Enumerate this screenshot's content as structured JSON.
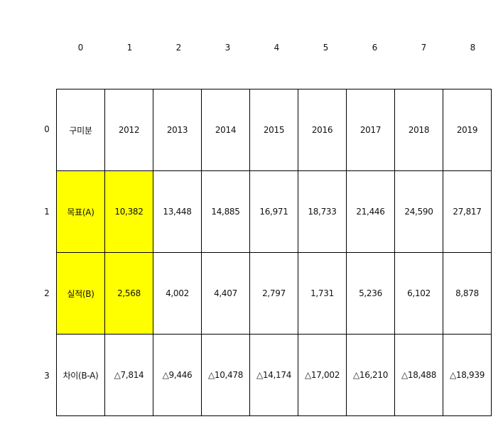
{
  "highlight_color": "#ffff00",
  "column_indices": [
    "0",
    "1",
    "2",
    "3",
    "4",
    "5",
    "6",
    "7",
    "8"
  ],
  "row_indices": [
    "0",
    "1",
    "2",
    "3"
  ],
  "rows": [
    [
      "구미분",
      "2012",
      "2013",
      "2014",
      "2015",
      "2016",
      "2017",
      "2018",
      "2019"
    ],
    [
      "목표(A)",
      "10,382",
      "13,448",
      "14,885",
      "16,971",
      "18,733",
      "21,446",
      "24,590",
      "27,817"
    ],
    [
      "실적(B)",
      "2,568",
      "4,002",
      "4,407",
      "2,797",
      "1,731",
      "5,236",
      "6,102",
      "8,878"
    ],
    [
      "차이(B-A)",
      "△7,814",
      "△9,446",
      "△10,478",
      "△14,174",
      "△17,002",
      "△16,210",
      "△18,488",
      "△18,939"
    ]
  ],
  "highlighted_cells": [
    [
      1,
      0
    ],
    [
      1,
      1
    ],
    [
      2,
      0
    ],
    [
      2,
      1
    ]
  ]
}
